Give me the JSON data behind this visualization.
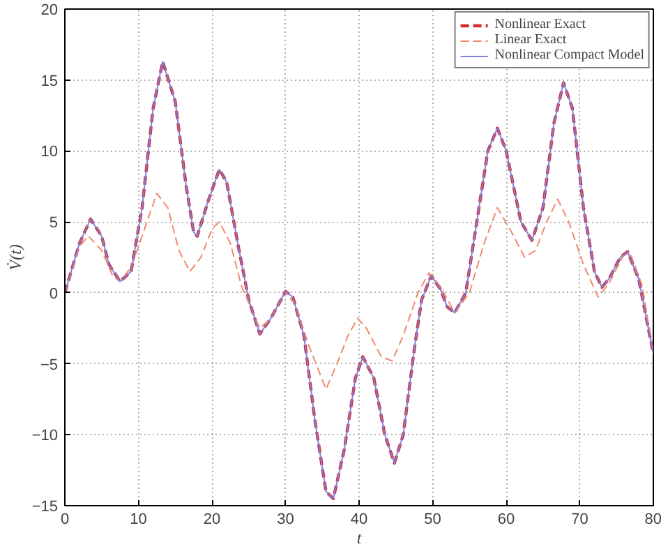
{
  "chart_data": {
    "type": "line",
    "xlabel": "t",
    "ylabel": "V̇(t)",
    "xlim": [
      0,
      80
    ],
    "ylim": [
      -15,
      20
    ],
    "xticks": [
      0,
      10,
      20,
      30,
      40,
      50,
      60,
      70,
      80
    ],
    "yticks": [
      -15,
      -10,
      -5,
      0,
      5,
      10,
      15,
      20
    ],
    "grid": true,
    "legend": "top right",
    "marker": "none",
    "series": [
      {
        "name": "Nonlinear Exact",
        "color": "#d42a2a",
        "line_style": "dashed",
        "x": [
          0,
          2,
          3.5,
          5,
          6,
          7.5,
          9,
          10.5,
          12,
          13.3,
          15,
          16.5,
          17.5,
          18,
          19.5,
          21,
          22,
          23.5,
          25,
          26.5,
          28,
          30,
          31,
          32.5,
          34,
          35.5,
          36.5,
          38,
          39.5,
          40.5,
          42,
          43.5,
          44.8,
          46,
          47.5,
          48.5,
          49.8,
          51,
          52,
          53,
          54.5,
          56,
          57.5,
          58.8,
          60,
          62,
          63.5,
          65,
          66.5,
          67.8,
          69,
          70.5,
          72,
          73,
          74,
          75.5,
          76.5,
          78,
          80
        ],
        "values": [
          0,
          3.5,
          5.2,
          4,
          2,
          0.8,
          1.5,
          6,
          13,
          16.3,
          13.5,
          7.5,
          4.3,
          4,
          6.5,
          8.7,
          7.8,
          3.5,
          -0.5,
          -2.9,
          -1.8,
          0.1,
          -0.3,
          -3,
          -9,
          -14,
          -14.5,
          -11,
          -6,
          -4.5,
          -6,
          -10,
          -12,
          -10,
          -4,
          -0.5,
          1.2,
          0.3,
          -1,
          -1.4,
          0,
          5,
          10,
          11.6,
          10,
          5,
          3.7,
          6,
          12,
          14.8,
          13,
          6,
          1.5,
          0.4,
          1,
          2.5,
          2.9,
          1,
          -4.3
        ]
      },
      {
        "name": "Linear Exact",
        "color": "#f08a6a",
        "line_style": "dashed",
        "x": [
          0,
          2,
          3.2,
          5,
          6.5,
          7.5,
          9,
          10.5,
          12.5,
          14,
          15.5,
          17,
          18.5,
          20,
          21,
          22.5,
          24,
          26.5,
          28,
          30,
          31.5,
          33,
          35.5,
          37,
          38.5,
          39.8,
          41,
          43,
          44.5,
          46,
          48,
          49.5,
          51,
          53,
          55,
          57,
          58.8,
          60.5,
          62.5,
          64,
          65.5,
          67,
          68.5,
          70.5,
          72.5,
          74,
          76,
          77,
          78.5,
          80
        ],
        "values": [
          0,
          3.3,
          4,
          3,
          1.2,
          0.8,
          1.8,
          4,
          7,
          6,
          3,
          1.5,
          2.5,
          4.5,
          5,
          3.5,
          0.5,
          -2.5,
          -1.8,
          0.1,
          -1,
          -3.5,
          -6.8,
          -5,
          -3,
          -1.8,
          -2.5,
          -4.5,
          -4.8,
          -3,
          0,
          1.4,
          0.5,
          -1.4,
          0,
          3.5,
          6,
          4.5,
          2.5,
          3,
          5,
          6.6,
          5,
          2,
          -0.3,
          0.7,
          2.7,
          2.6,
          0.5,
          -4.3
        ]
      },
      {
        "name": "Nonlinear Compact Model",
        "color": "#8080e0",
        "line_style": "solid",
        "x": [
          0,
          2,
          3.5,
          5,
          6,
          7.5,
          9,
          10.5,
          12,
          13.3,
          15,
          16.5,
          17.5,
          18,
          19.5,
          21,
          22,
          23.5,
          25,
          26.5,
          28,
          30,
          31,
          32.5,
          34,
          35.5,
          36.5,
          38,
          39.5,
          40.5,
          42,
          43.5,
          44.8,
          46,
          47.5,
          48.5,
          49.8,
          51,
          52,
          53,
          54.5,
          56,
          57.5,
          58.8,
          60,
          62,
          63.5,
          65,
          66.5,
          67.8,
          69,
          70.5,
          72,
          73,
          74,
          75.5,
          76.5,
          78,
          80
        ],
        "values": [
          0,
          3.5,
          5.2,
          4,
          2,
          0.8,
          1.5,
          6,
          13,
          16.3,
          13.5,
          7.5,
          4.3,
          4,
          6.5,
          8.7,
          7.8,
          3.5,
          -0.5,
          -2.9,
          -1.8,
          0.1,
          -0.3,
          -3,
          -9,
          -14,
          -14.5,
          -11,
          -6,
          -4.5,
          -6,
          -10,
          -12,
          -10,
          -4,
          -0.5,
          1.2,
          0.3,
          -1,
          -1.4,
          0,
          5,
          10,
          11.6,
          10,
          5,
          3.7,
          6,
          12,
          14.8,
          13,
          6,
          1.5,
          0.4,
          1,
          2.5,
          2.9,
          1,
          -4.3
        ]
      }
    ]
  }
}
